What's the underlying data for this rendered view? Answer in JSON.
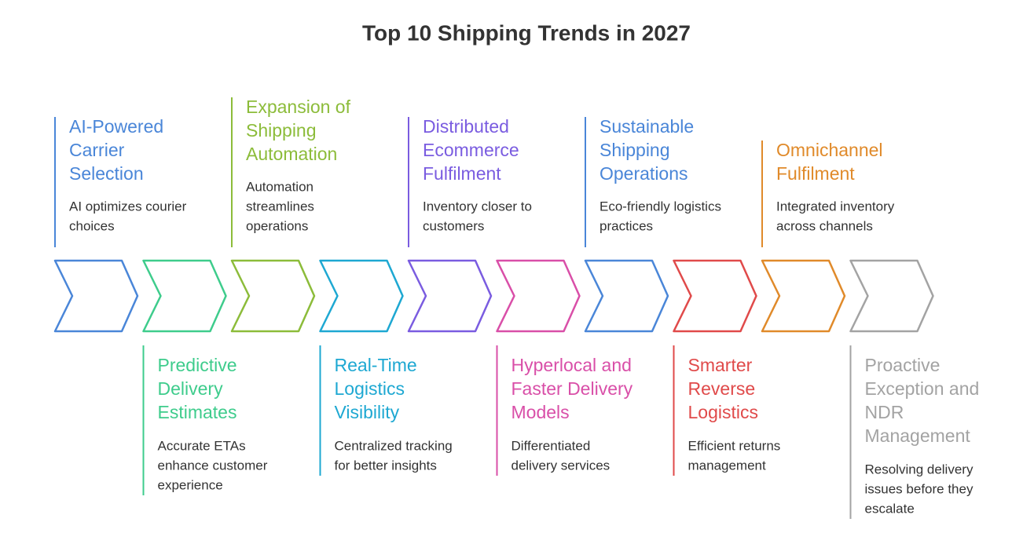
{
  "title": "Top 10 Shipping Trends in 2027",
  "items": [
    {
      "title": [
        "AI-Powered",
        "Carrier",
        "Selection"
      ],
      "description": [
        "AI optimizes courier",
        "choices"
      ],
      "color": "#4a86d8"
    },
    {
      "title": [
        "Predictive",
        "Delivery",
        "Estimates"
      ],
      "description": [
        "Accurate ETAs",
        "enhance customer",
        "experience"
      ],
      "color": "#3ecc8c"
    },
    {
      "title": [
        "Expansion of",
        "Shipping",
        "Automation"
      ],
      "description": [
        "Automation",
        "streamlines",
        "operations"
      ],
      "color": "#8cbc3a"
    },
    {
      "title": [
        "Real-Time",
        "Logistics",
        "Visibility"
      ],
      "description": [
        "Centralized tracking",
        "for better insights"
      ],
      "color": "#1ea8d2"
    },
    {
      "title": [
        "Distributed",
        "Ecommerce",
        "Fulfilment"
      ],
      "description": [
        "Inventory closer to",
        "customers"
      ],
      "color": "#7a5ce0"
    },
    {
      "title": [
        "Hyperlocal and",
        "Faster Delivery",
        "Models"
      ],
      "description": [
        "Differentiated",
        "delivery services"
      ],
      "color": "#d94fa8"
    },
    {
      "title": [
        "Sustainable",
        "Shipping",
        "Operations"
      ],
      "description": [
        "Eco-friendly logistics",
        "practices"
      ],
      "color": "#4a86d8"
    },
    {
      "title": [
        "Smarter",
        "Reverse",
        "Logistics"
      ],
      "description": [
        "Efficient returns",
        "management"
      ],
      "color": "#e04a4a"
    },
    {
      "title": [
        "Omnichannel",
        "Fulfilment"
      ],
      "description": [
        "Integrated inventory",
        "across channels"
      ],
      "color": "#e08a2a"
    },
    {
      "title": [
        "Proactive",
        "Exception and",
        "NDR",
        "Management"
      ],
      "description": [
        "Resolving delivery",
        "issues before they",
        "escalate"
      ],
      "color": "#a3a3a3"
    }
  ]
}
